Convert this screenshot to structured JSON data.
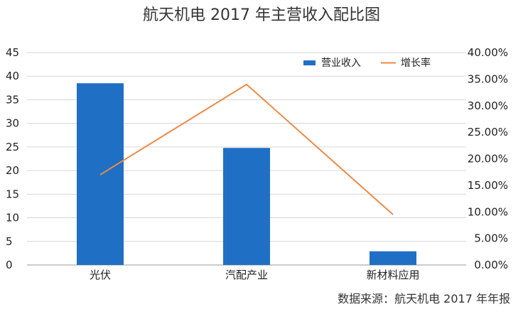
{
  "chart_data": {
    "type": "bar",
    "title": "航天机电 2017 年主营收入配比图",
    "categories": [
      "光伏",
      "汽配产业",
      "新材料应用"
    ],
    "series": [
      {
        "name": "营业收入",
        "type": "bar",
        "axis": "left",
        "values": [
          38.5,
          24.8,
          2.9
        ],
        "color": "#1f6fc5"
      },
      {
        "name": "增长率",
        "type": "line",
        "axis": "right",
        "values": [
          0.17,
          0.34,
          0.095
        ],
        "color": "#ee8a45"
      }
    ],
    "left_axis": {
      "ylim": [
        0,
        45
      ],
      "ticks": [
        "0",
        "5",
        "10",
        "15",
        "20",
        "25",
        "30",
        "35",
        "40",
        "45"
      ]
    },
    "right_axis": {
      "ylim": [
        0,
        0.4
      ],
      "ticks": [
        "0.00%",
        "5.00%",
        "10.00%",
        "15.00%",
        "20.00%",
        "25.00%",
        "30.00%",
        "35.00%",
        "40.00%"
      ]
    },
    "grid": true,
    "legend": "top-right",
    "source": "数据来源：航天机电 2017 年年报"
  }
}
